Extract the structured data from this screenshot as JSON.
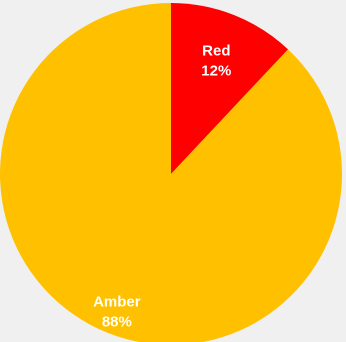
{
  "chart_data": {
    "type": "pie",
    "title": "",
    "slices": [
      {
        "label": "Red",
        "value": 12,
        "value_label": "12%",
        "color": "#ff0000"
      },
      {
        "label": "Amber",
        "value": 88,
        "value_label": "88%",
        "color": "#ffc000"
      }
    ],
    "start_angle_deg": 0,
    "direction": "clockwise",
    "legend": "none"
  },
  "colors": {
    "background": "#f0f0f0",
    "label_text": "#ffffff"
  }
}
